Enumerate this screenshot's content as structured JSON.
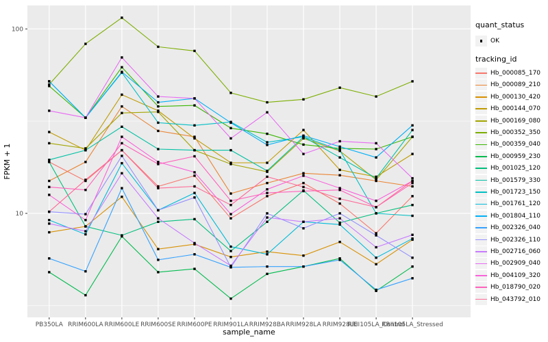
{
  "axes": {
    "x_title": "sample_name",
    "y_title": "FPKM + 1",
    "y_tick_labels": [
      "100",
      "10"
    ]
  },
  "legend": {
    "quant_status_title": "quant_status",
    "quant_status_items": [
      "OK"
    ],
    "tracking_title": "tracking_id"
  },
  "colors": {
    "panel_bg": "#EBEBEB",
    "grid": "#FFFFFF",
    "tick_text": "#4D4D4D",
    "tick_mark": "#333333",
    "point": "#000000",
    "legend_key_bg": "#F2F2F2"
  },
  "chart_data": {
    "type": "line",
    "title": "",
    "xlabel": "sample_name",
    "ylabel": "FPKM + 1",
    "y_scale": "log10",
    "y_ticks_major": [
      10,
      100
    ],
    "y_ticks_minor": [
      3.162,
      31.623
    ],
    "ylim": [
      2.73,
      134
    ],
    "legend_position": "right",
    "quant_status": "OK",
    "point_shape": "small-black-point",
    "grid": true,
    "categories": [
      "PB350LA",
      "RRIM600LA",
      "RRIM600LE",
      "RRIM600SE",
      "RRIM600PE",
      "RRIM901LA",
      "RRIM928BA",
      "RRIM928LA",
      "RRIM928LE",
      "RRII105LA_Control",
      "RRII105LA_Stressed"
    ],
    "series": [
      {
        "name": "Hb_000085_170",
        "color": "#F8766D",
        "values": [
          19,
          15,
          22,
          14,
          16,
          9.4,
          12.4,
          14.6,
          11.3,
          7.8,
          12.4
        ]
      },
      {
        "name": "Hb_000089_210",
        "color": "#EA8331",
        "values": [
          15,
          19,
          38,
          28,
          26,
          12.8,
          14.6,
          16.5,
          16.1,
          15,
          14
        ]
      },
      {
        "name": "Hb_000130_420",
        "color": "#D89000",
        "values": [
          7.9,
          8.5,
          12.3,
          6.4,
          6.8,
          5.8,
          6.2,
          5.9,
          7,
          5.3,
          7.2
        ]
      },
      {
        "name": "Hb_000144_070",
        "color": "#C09B00",
        "values": [
          27.6,
          22,
          44,
          36,
          25.5,
          18.8,
          18.8,
          28.3,
          17.2,
          15.8,
          21
        ]
      },
      {
        "name": "Hb_000169_080",
        "color": "#A3A500",
        "values": [
          24,
          22.5,
          35,
          35.5,
          22,
          18.5,
          16.8,
          25.5,
          21.8,
          15.2,
          26
        ]
      },
      {
        "name": "Hb_000352_350",
        "color": "#7CAE00",
        "values": [
          50,
          83,
          115,
          80,
          76,
          45,
          40,
          41.5,
          48,
          43,
          52
        ]
      },
      {
        "name": "Hb_000359_040",
        "color": "#39B600",
        "values": [
          49,
          33,
          62,
          38,
          38.5,
          29,
          27,
          23.6,
          22.5,
          22.3,
          26
        ]
      },
      {
        "name": "Hb_000959_230",
        "color": "#00BB4E",
        "values": [
          4.8,
          3.6,
          7.5,
          4.8,
          5,
          3.45,
          4.7,
          5.15,
          5.7,
          3.8,
          5.15
        ]
      },
      {
        "name": "Hb_001025_120",
        "color": "#00BF7D",
        "values": [
          19,
          8.5,
          7.6,
          9,
          9.3,
          6.25,
          9,
          13.3,
          8.9,
          10,
          11.1
        ]
      },
      {
        "name": "Hb_001579_330",
        "color": "#00C1A3",
        "values": [
          19.5,
          22,
          29.5,
          22.3,
          22,
          22,
          17,
          26,
          20.1,
          15.5,
          28.3
        ]
      },
      {
        "name": "Hb_001723_150",
        "color": "#00BFC4",
        "values": [
          52,
          33,
          58,
          31,
          30,
          31.3,
          24.3,
          26,
          22,
          10,
          9.7
        ]
      },
      {
        "name": "Hb_001761_120",
        "color": "#00BBDA",
        "values": [
          9.2,
          7.7,
          18.7,
          10.4,
          12.9,
          6.6,
          6,
          9,
          8.7,
          5.75,
          7.3
        ]
      },
      {
        "name": "Hb_001804_110",
        "color": "#00B0F6",
        "values": [
          52,
          33,
          58.5,
          40,
          42,
          31,
          23.5,
          26.4,
          23,
          20.1,
          30
        ]
      },
      {
        "name": "Hb_002326_040",
        "color": "#35A2FF",
        "values": [
          5.7,
          4.85,
          13.7,
          5.6,
          6,
          5.1,
          5.15,
          5.15,
          5.6,
          3.85,
          4.45
        ]
      },
      {
        "name": "Hb_002326_110",
        "color": "#9590FF",
        "values": [
          10.2,
          9.9,
          20.5,
          10.4,
          12.2,
          5.1,
          10,
          8.3,
          10,
          7.6,
          5.75
        ]
      },
      {
        "name": "Hb_002716_060",
        "color": "#C77CFF",
        "values": [
          8.8,
          8,
          16.5,
          9.4,
          6.9,
          5.2,
          9.5,
          9,
          9.4,
          6.55,
          7.65
        ]
      },
      {
        "name": "Hb_002909_040",
        "color": "#E76BF3",
        "values": [
          36,
          33,
          70,
          43,
          42,
          25.5,
          35.3,
          21,
          24.6,
          24,
          15.5
        ]
      },
      {
        "name": "Hb_004109_320",
        "color": "#FA62DB",
        "values": [
          12.6,
          9.2,
          26,
          19,
          16.7,
          9.9,
          13.5,
          16,
          13.7,
          11.7,
          15
        ]
      },
      {
        "name": "Hb_018790_020",
        "color": "#FF62BC",
        "values": [
          13.9,
          13.4,
          24,
          18.5,
          20.4,
          11.7,
          12.9,
          13.2,
          13.4,
          10.8,
          14.6
        ]
      },
      {
        "name": "Hb_043792_010",
        "color": "#FF6A98",
        "values": [
          10.2,
          15.2,
          22,
          13.7,
          14,
          11.1,
          15.8,
          13.9,
          12,
          10.8,
          15
        ]
      }
    ]
  }
}
